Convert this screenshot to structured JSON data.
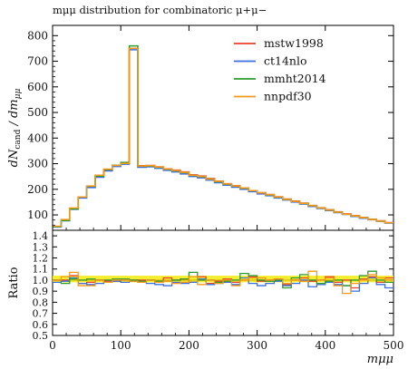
{
  "chart_data": [
    {
      "type": "line",
      "title": "mμμ distribution for combinatoric μ+μ−",
      "ylabel": "dN_cand / dm_μμ",
      "ylabel_main": "dN",
      "ylabel_sub": "cand",
      "ylabel_rest": " / dm",
      "ylabel_sub2": "μμ",
      "xlim": [
        0,
        500
      ],
      "ylim": [
        40,
        840
      ],
      "yticks": [
        "100",
        "200",
        "300",
        "400",
        "500",
        "600",
        "700",
        "800"
      ],
      "legend_position": "top-right",
      "x": [
        0,
        12.5,
        25,
        37.5,
        50,
        62.5,
        75,
        87.5,
        100,
        112.5,
        125,
        137.5,
        150,
        162.5,
        175,
        187.5,
        200,
        212.5,
        225,
        237.5,
        250,
        262.5,
        275,
        287.5,
        300,
        312.5,
        325,
        337.5,
        350,
        362.5,
        375,
        387.5,
        400,
        412.5,
        425,
        437.5,
        450,
        462.5,
        475,
        487.5,
        500
      ],
      "series": [
        {
          "name": "mstw1998",
          "color": "#e8402f",
          "values": [
            55,
            80,
            125,
            168,
            210,
            252,
            276,
            292,
            302,
            750,
            292,
            293,
            288,
            280,
            275,
            268,
            257,
            252,
            242,
            232,
            222,
            214,
            205,
            195,
            187,
            180,
            171,
            162,
            154,
            146,
            137,
            128,
            120,
            112,
            104,
            97,
            90,
            83,
            77,
            70,
            63
          ]
        },
        {
          "name": "ct14nlo",
          "color": "#3a6fe0",
          "values": [
            53,
            77,
            122,
            166,
            207,
            247,
            272,
            289,
            298,
            745,
            286,
            288,
            282,
            274,
            268,
            260,
            250,
            245,
            236,
            226,
            216,
            208,
            200,
            191,
            182,
            175,
            166,
            158,
            150,
            142,
            133,
            125,
            117,
            109,
            102,
            94,
            87,
            81,
            75,
            68,
            61
          ]
        },
        {
          "name": "mmht2014",
          "color": "#2e9d2e",
          "values": [
            54,
            78,
            123,
            170,
            212,
            252,
            277,
            294,
            305,
            760,
            290,
            291,
            286,
            278,
            272,
            265,
            254,
            249,
            240,
            230,
            220,
            212,
            204,
            195,
            186,
            178,
            169,
            160,
            153,
            145,
            136,
            127,
            119,
            111,
            103,
            96,
            89,
            82,
            76,
            69,
            62
          ]
        },
        {
          "name": "nnpdf30",
          "color": "#f39a1c",
          "values": [
            56,
            82,
            127,
            170,
            213,
            255,
            279,
            293,
            301,
            750,
            291,
            292,
            287,
            279,
            273,
            266,
            255,
            250,
            240,
            231,
            221,
            213,
            205,
            195,
            186,
            179,
            170,
            161,
            153,
            145,
            136,
            127,
            119,
            111,
            103,
            96,
            89,
            82,
            76,
            69,
            62
          ]
        }
      ]
    },
    {
      "type": "line",
      "ylabel": "Ratio",
      "xlabel": "mμμ",
      "xlim": [
        0,
        500
      ],
      "ylim": [
        0.5,
        1.45
      ],
      "xticks": [
        "0",
        "100",
        "200",
        "300",
        "400",
        "500"
      ],
      "yticks": [
        "0.5",
        "0.6",
        "0.7",
        "0.8",
        "0.9",
        "1.0",
        "1.1",
        "1.2",
        "1.3",
        "1.4"
      ],
      "band": {
        "low": 0.98,
        "high": 1.04,
        "color": "#f4ec1a"
      },
      "x": [
        0,
        12.5,
        25,
        37.5,
        50,
        62.5,
        75,
        87.5,
        100,
        112.5,
        125,
        137.5,
        150,
        162.5,
        175,
        187.5,
        200,
        212.5,
        225,
        237.5,
        250,
        262.5,
        275,
        287.5,
        300,
        312.5,
        325,
        337.5,
        350,
        362.5,
        375,
        387.5,
        400,
        412.5,
        425,
        437.5,
        450,
        462.5,
        475,
        487.5,
        500
      ],
      "series": [
        {
          "name": "mstw1998",
          "color": "#e8402f",
          "values": [
            1.0,
            1.0,
            1.04,
            0.97,
            0.98,
            1.0,
            0.99,
            0.99,
            1.0,
            1.0,
            1.0,
            1.0,
            0.99,
            1.02,
            1.0,
            1.01,
            0.98,
            1.03,
            0.97,
            0.99,
            1.01,
            0.98,
            1.0,
            1.03,
            0.99,
            1.0,
            1.01,
            0.96,
            1.0,
            1.02,
            0.99,
            1.0,
            1.03,
            0.98,
            1.0,
            0.93,
            1.01,
            1.03,
            0.98,
            1.02,
            1.0
          ]
        },
        {
          "name": "ct14nlo",
          "color": "#3a6fe0",
          "values": [
            0.98,
            0.99,
            1.02,
            0.97,
            0.96,
            0.97,
            0.98,
            0.99,
            0.98,
            0.99,
            0.98,
            0.97,
            0.96,
            0.95,
            0.98,
            0.97,
            0.98,
            1.01,
            0.96,
            0.97,
            0.98,
            0.96,
            1.02,
            0.97,
            0.95,
            0.97,
            0.99,
            0.95,
            0.97,
            1.0,
            0.94,
            0.96,
            0.98,
            0.96,
            0.95,
            0.9,
            0.97,
            1.02,
            0.96,
            0.93,
            0.94
          ]
        },
        {
          "name": "mmht2014",
          "color": "#2e9d2e",
          "values": [
            1.0,
            0.97,
            1.01,
            1.0,
            1.01,
            1.0,
            1.0,
            1.01,
            1.01,
            1.0,
            0.99,
            1.0,
            0.99,
            0.99,
            1.0,
            1.01,
            1.07,
            1.0,
            1.0,
            0.98,
            0.99,
            1.0,
            1.06,
            1.04,
            1.0,
            0.99,
            1.0,
            0.93,
            1.02,
            1.05,
            1.0,
            0.97,
            0.99,
            1.0,
            0.95,
            1.0,
            1.04,
            1.08,
            1.0,
            0.98,
            1.0
          ]
        },
        {
          "name": "nnpdf30",
          "color": "#f39a1c",
          "values": [
            1.0,
            1.03,
            1.07,
            0.95,
            0.95,
            1.0,
            0.98,
            1.0,
            1.0,
            0.99,
            0.98,
            1.0,
            0.98,
            0.99,
            0.97,
            0.98,
            1.03,
            0.96,
            1.0,
            0.97,
            1.0,
            0.95,
            1.0,
            1.02,
            1.02,
            1.0,
            1.01,
            0.97,
            1.0,
            0.99,
            1.08,
            1.0,
            1.02,
            0.95,
            0.88,
            0.97,
            1.0,
            1.05,
            1.02,
            1.0,
            0.97
          ]
        }
      ]
    }
  ]
}
